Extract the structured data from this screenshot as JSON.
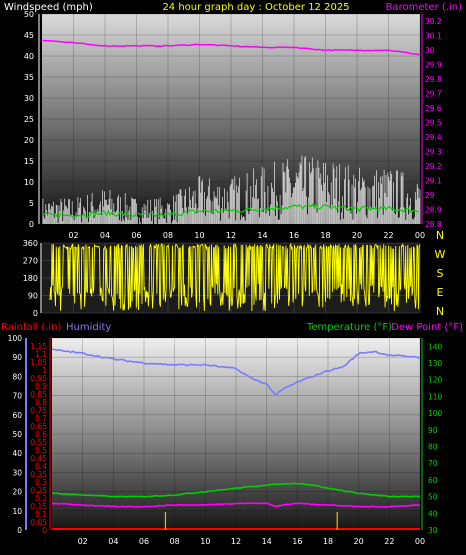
{
  "header": {
    "wind_label": "Windspeed (mph)",
    "title": "24 hour graph day : October 12 2025",
    "baro_label": "Barometer (.in)"
  },
  "mid_panel": {
    "compass_labels": [
      "N",
      "W",
      "S",
      "E",
      "N"
    ]
  },
  "bottom_header": {
    "rain_label": "Rainfall (.in)",
    "humidity_label": "Humidity",
    "temp_label": "Temperature (°F)",
    "dew_label": "Dew Point (°F)"
  },
  "colors": {
    "wind": "#ffffff",
    "wind_avg": "#00d000",
    "baro": "#ff00ff",
    "direction": "#ffff00",
    "rain": "#ff0000",
    "humidity": "#7b7bff",
    "temperature": "#00d000",
    "dewpoint": "#ff00ff",
    "title": "#ffff00"
  },
  "chart_data": [
    {
      "type": "line",
      "title": "24 hour graph day : October 12 2025",
      "x_ticks": [
        "02",
        "04",
        "06",
        "08",
        "10",
        "12",
        "14",
        "16",
        "18",
        "20",
        "22",
        "00"
      ],
      "left_axis": {
        "label": "Windspeed (mph)",
        "ticks": [
          0,
          5,
          10,
          15,
          20,
          25,
          30,
          35,
          40,
          45,
          50
        ],
        "lim": [
          0,
          50
        ]
      },
      "right_axis": {
        "label": "Barometer (.in)",
        "ticks": [
          "28.8",
          "28.9",
          "29",
          "29.1",
          "29.2",
          "29.3",
          "29.4",
          "29.5",
          "29.6",
          "29.7",
          "29.8",
          "29.9",
          "30",
          "30.1",
          "30.2"
        ],
        "lim": [
          28.8,
          30.25
        ]
      },
      "series": [
        {
          "name": "Windspeed (mph)",
          "axis": "left",
          "x": [
            0,
            2,
            4,
            6,
            8,
            10,
            12,
            14,
            16,
            18,
            20,
            22,
            24
          ],
          "values": [
            3,
            3,
            4,
            3,
            3,
            5,
            5,
            6,
            7,
            7,
            6,
            6,
            5
          ]
        },
        {
          "name": "Barometer (.in)",
          "axis": "right",
          "x": [
            0,
            2,
            4,
            6,
            8,
            10,
            12,
            14,
            16,
            18,
            20,
            22,
            24
          ],
          "values": [
            30.07,
            30.05,
            30.03,
            30.03,
            30.03,
            30.04,
            30.03,
            30.02,
            30.02,
            30.0,
            30.0,
            30.0,
            29.97
          ]
        }
      ],
      "grid": true
    },
    {
      "type": "line",
      "x_ticks": [
        "02",
        "04",
        "06",
        "08",
        "10",
        "12",
        "14",
        "16",
        "18",
        "20",
        "22",
        "00"
      ],
      "left_axis": {
        "ticks": [
          0,
          90,
          180,
          270,
          360
        ],
        "lim": [
          0,
          360
        ]
      },
      "series": [
        {
          "name": "Wind direction",
          "x": [
            0,
            24
          ],
          "values": [
            180,
            180
          ]
        }
      ],
      "grid": true
    },
    {
      "type": "line",
      "x_ticks": [
        "02",
        "04",
        "06",
        "08",
        "10",
        "12",
        "14",
        "16",
        "18",
        "20",
        "22",
        "00"
      ],
      "humidity_axis": {
        "label": "Humidity",
        "ticks": [
          0,
          10,
          20,
          30,
          40,
          50,
          60,
          70,
          80,
          90,
          100
        ],
        "lim": [
          0,
          100
        ]
      },
      "rain_axis": {
        "label": "Rainfall (.in)",
        "ticks": [
          "0",
          "0.05",
          "0.1",
          "0.15",
          "0.2",
          "0.25",
          "0.3",
          "0.35",
          "0.4",
          "0.45",
          "0.5",
          "0.55",
          "0.6",
          "0.65",
          "0.7",
          "0.75",
          "0.8",
          "0.85",
          "0.9",
          "0.95",
          "1",
          "1.05",
          "1.1",
          "1.15"
        ],
        "lim": [
          0,
          1.15
        ]
      },
      "temp_axis": {
        "label": "Temperature (°F)",
        "ticks": [
          30,
          40,
          50,
          60,
          70,
          80,
          90,
          100,
          110,
          120,
          130,
          140
        ],
        "lim": [
          30,
          145
        ]
      },
      "series": [
        {
          "name": "Humidity",
          "axis": "humidity",
          "x": [
            0,
            2,
            4,
            6,
            8,
            10,
            12,
            13,
            14,
            14.6,
            15,
            16,
            18,
            19,
            20,
            21,
            22,
            24
          ],
          "values": [
            94,
            92,
            89,
            87,
            86,
            86,
            84,
            79,
            76,
            70,
            73,
            77,
            83,
            85,
            92,
            93,
            91,
            90
          ]
        },
        {
          "name": "Temperature (°F)",
          "axis": "temp",
          "x": [
            0,
            2,
            4,
            6,
            8,
            10,
            12,
            14,
            16,
            17,
            18,
            20,
            22,
            24
          ],
          "values": [
            52,
            51,
            50,
            50,
            51,
            53,
            55,
            57,
            58,
            57,
            55,
            52,
            50,
            50
          ]
        },
        {
          "name": "Dew Point (°F)",
          "axis": "temp",
          "x": [
            0,
            2,
            4,
            6,
            8,
            10,
            12,
            14,
            14.6,
            15,
            16,
            18,
            20,
            22,
            24
          ],
          "values": [
            46,
            45,
            44,
            44,
            45,
            45,
            46,
            46,
            44,
            45,
            46,
            45,
            44,
            44,
            45
          ]
        },
        {
          "name": "Rainfall (.in)",
          "axis": "rain",
          "x": [
            0,
            24
          ],
          "values": [
            0,
            0
          ]
        }
      ],
      "grid": true
    }
  ]
}
